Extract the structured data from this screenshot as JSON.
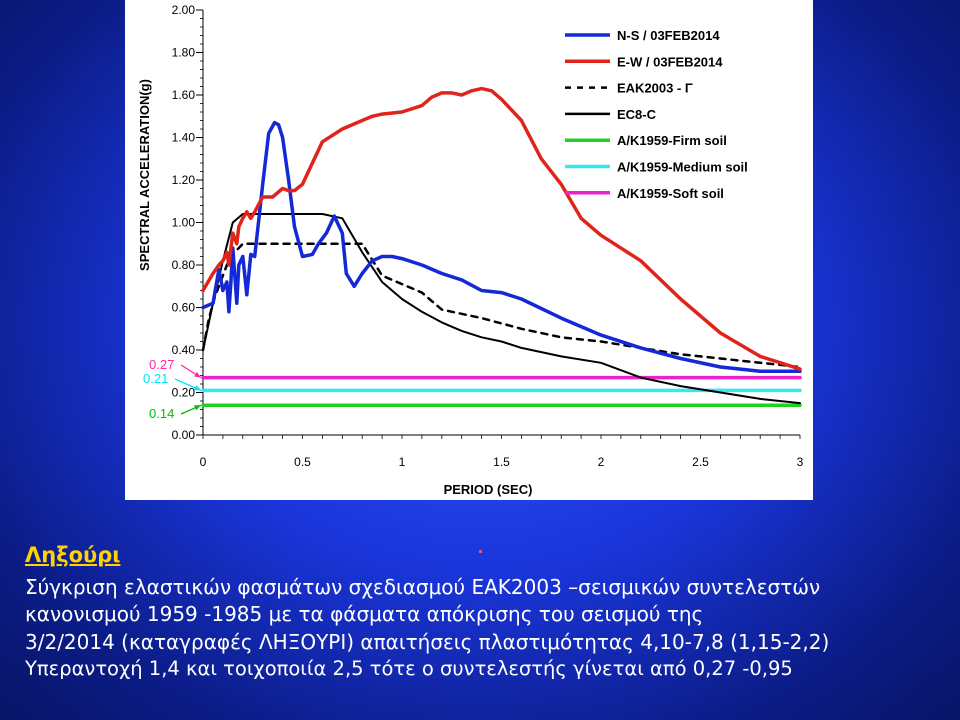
{
  "chart_data": {
    "type": "line",
    "ylabel": "SPECTRAL ACCELERATION(g)",
    "xlabel": "PERIOD (SEC)",
    "xlim": [
      0,
      3
    ],
    "ylim": [
      0,
      2
    ],
    "x_ticks": [
      "0",
      "0.5",
      "1",
      "1.5",
      "2",
      "2.5",
      "3"
    ],
    "y_ticks": [
      "0.00",
      "0.20",
      "0.40",
      "0.60",
      "0.80",
      "1.00",
      "1.20",
      "1.40",
      "1.60",
      "1.80",
      "2.00"
    ],
    "y_annotations": [
      {
        "label": "0.27",
        "value": 0.27,
        "color": "#ff2aa0"
      },
      {
        "label": "0.21",
        "value": 0.21,
        "color": "#00e5ff"
      },
      {
        "label": "0.14",
        "value": 0.14,
        "color": "#00c000"
      }
    ],
    "legend_position": "top-right",
    "series": [
      {
        "name": "N-S / 03FEB2014",
        "color": "#1428d8",
        "style": "solid",
        "x": [
          0,
          0.05,
          0.08,
          0.1,
          0.12,
          0.13,
          0.14,
          0.15,
          0.17,
          0.18,
          0.2,
          0.22,
          0.24,
          0.26,
          0.3,
          0.33,
          0.36,
          0.38,
          0.4,
          0.43,
          0.46,
          0.5,
          0.55,
          0.58,
          0.62,
          0.66,
          0.7,
          0.72,
          0.76,
          0.8,
          0.85,
          0.9,
          0.95,
          1.0,
          1.1,
          1.2,
          1.3,
          1.4,
          1.5,
          1.6,
          1.8,
          2.0,
          2.2,
          2.4,
          2.6,
          2.8,
          3.0
        ],
        "y": [
          0.6,
          0.62,
          0.78,
          0.68,
          0.72,
          0.58,
          0.72,
          0.88,
          0.62,
          0.8,
          0.84,
          0.66,
          0.85,
          0.84,
          1.18,
          1.42,
          1.47,
          1.46,
          1.4,
          1.2,
          0.98,
          0.84,
          0.85,
          0.9,
          0.95,
          1.03,
          0.95,
          0.76,
          0.7,
          0.76,
          0.82,
          0.84,
          0.84,
          0.83,
          0.8,
          0.76,
          0.73,
          0.68,
          0.67,
          0.64,
          0.55,
          0.47,
          0.41,
          0.36,
          0.32,
          0.3,
          0.3
        ]
      },
      {
        "name": "E-W / 03FEB2014",
        "color": "#e0241c",
        "style": "solid",
        "x": [
          0,
          0.05,
          0.08,
          0.1,
          0.12,
          0.13,
          0.15,
          0.17,
          0.18,
          0.2,
          0.22,
          0.24,
          0.26,
          0.3,
          0.35,
          0.4,
          0.43,
          0.46,
          0.5,
          0.55,
          0.6,
          0.7,
          0.75,
          0.8,
          0.85,
          0.9,
          1.0,
          1.1,
          1.15,
          1.2,
          1.25,
          1.3,
          1.35,
          1.4,
          1.45,
          1.5,
          1.6,
          1.7,
          1.8,
          1.9,
          2.0,
          2.2,
          2.4,
          2.6,
          2.8,
          3.0
        ],
        "y": [
          0.68,
          0.76,
          0.8,
          0.82,
          0.86,
          0.8,
          0.95,
          0.9,
          0.98,
          1.02,
          1.05,
          1.02,
          1.05,
          1.12,
          1.12,
          1.16,
          1.15,
          1.15,
          1.18,
          1.28,
          1.38,
          1.44,
          1.46,
          1.48,
          1.5,
          1.51,
          1.52,
          1.55,
          1.59,
          1.61,
          1.61,
          1.6,
          1.62,
          1.63,
          1.62,
          1.58,
          1.48,
          1.3,
          1.18,
          1.02,
          0.94,
          0.82,
          0.64,
          0.48,
          0.37,
          0.31
        ]
      },
      {
        "name": "EAK2003 - Γ",
        "color": "#000000",
        "style": "dashed",
        "x": [
          0,
          0.03,
          0.06,
          0.1,
          0.12,
          0.15,
          0.2,
          0.3,
          0.5,
          0.6,
          0.8,
          0.9,
          1.0,
          1.1,
          1.2,
          1.4,
          1.6,
          1.8,
          2.0,
          2.2,
          2.4,
          2.6,
          2.8,
          3.0
        ],
        "y": [
          0.4,
          0.55,
          0.65,
          0.75,
          0.8,
          0.85,
          0.9,
          0.9,
          0.9,
          0.9,
          0.9,
          0.75,
          0.71,
          0.67,
          0.59,
          0.55,
          0.5,
          0.46,
          0.44,
          0.41,
          0.38,
          0.36,
          0.34,
          0.32
        ]
      },
      {
        "name": "EC8-C",
        "color": "#000000",
        "style": "solid",
        "x": [
          0,
          0.05,
          0.1,
          0.15,
          0.2,
          0.3,
          0.4,
          0.5,
          0.6,
          0.7,
          0.8,
          0.9,
          1.0,
          1.1,
          1.2,
          1.3,
          1.4,
          1.5,
          1.6,
          1.8,
          2.0,
          2.2,
          2.4,
          2.6,
          2.8,
          3.0
        ],
        "y": [
          0.4,
          0.62,
          0.82,
          1.0,
          1.04,
          1.04,
          1.04,
          1.04,
          1.04,
          1.02,
          0.86,
          0.72,
          0.64,
          0.58,
          0.53,
          0.49,
          0.46,
          0.44,
          0.41,
          0.37,
          0.34,
          0.27,
          0.23,
          0.2,
          0.17,
          0.15
        ]
      },
      {
        "name": "A/K1959-Firm soil",
        "color": "#22d022",
        "style": "solid",
        "x": [
          0,
          3
        ],
        "y": [
          0.14,
          0.14
        ]
      },
      {
        "name": "A/K1959-Medium soil",
        "color": "#33e8ee",
        "style": "solid",
        "x": [
          0,
          3
        ],
        "y": [
          0.21,
          0.21
        ]
      },
      {
        "name": "A/K1959-Soft soil",
        "color": "#ee22cc",
        "style": "solid",
        "x": [
          0,
          3
        ],
        "y": [
          0.27,
          0.27
        ]
      }
    ]
  },
  "caption": {
    "place": "Ληξούρι",
    "dot": ".",
    "line1": "Σύγκριση ελαστικών φασμάτων σχεδιασμού ΕΑΚ2003 –σεισμικών συντελεστών",
    "line2": " κανονισμού 1959 -1985 με τα φάσματα απόκρισης του σεισμού της",
    "line3": "3/2/2014 (καταγραφές  ΛΗΞΟΥΡΙ)  απαιτήσεις πλαστιμότητας  4,10-7,8 (1,15-2,2)",
    "line4": "Υπεραντοχή  1,4 και τοιχοποιία 2,5 τότε ο συντελεστής γίνεται από 0,27 -0,95"
  }
}
